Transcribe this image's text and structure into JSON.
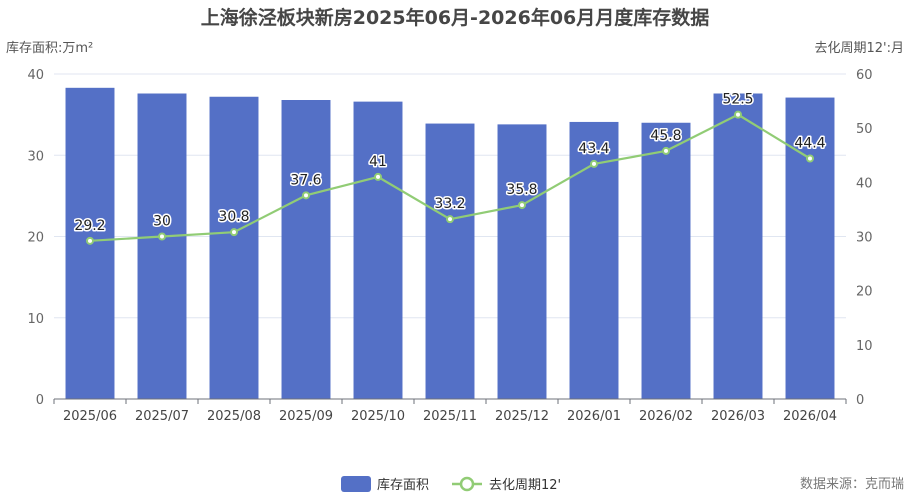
{
  "chart_data": {
    "type": "bar",
    "title": "上海徐泾板块新房2025年06月-2026年06月月度库存数据",
    "ylabel_left": "库存面积:万m²",
    "ylabel_right": "去化周期12':月",
    "categories": [
      "2025/06",
      "2025/07",
      "2025/08",
      "2025/09",
      "2025/10",
      "2025/11",
      "2025/12",
      "2026/01",
      "2026/02",
      "2026/03",
      "2026/04"
    ],
    "series": [
      {
        "name": "库存面积",
        "type": "bar",
        "axis": "left",
        "color": "#5470c6",
        "values": [
          38.3,
          37.6,
          37.2,
          36.8,
          36.6,
          33.9,
          33.8,
          34.1,
          34.0,
          37.6,
          37.1
        ]
      },
      {
        "name": "去化周期12'",
        "type": "line",
        "axis": "right",
        "color": "#91cc75",
        "values": [
          29.2,
          30,
          30.8,
          37.6,
          41,
          33.2,
          35.8,
          43.4,
          45.8,
          52.5,
          44.4
        ],
        "labels": [
          "29.2",
          "30",
          "30.8",
          "37.6",
          "41",
          "33.2",
          "35.8",
          "43.4",
          "45.8",
          "52.5",
          "44.4"
        ]
      }
    ],
    "ylim_left": [
      0,
      40
    ],
    "yticks_left": [
      "0",
      "10",
      "20",
      "30",
      "40"
    ],
    "ylim_right": [
      0,
      60
    ],
    "yticks_right": [
      "0",
      "10",
      "20",
      "30",
      "40",
      "50",
      "60"
    ],
    "grid": true,
    "legend_position": "bottom-center",
    "source": "数据来源：克而瑞"
  }
}
